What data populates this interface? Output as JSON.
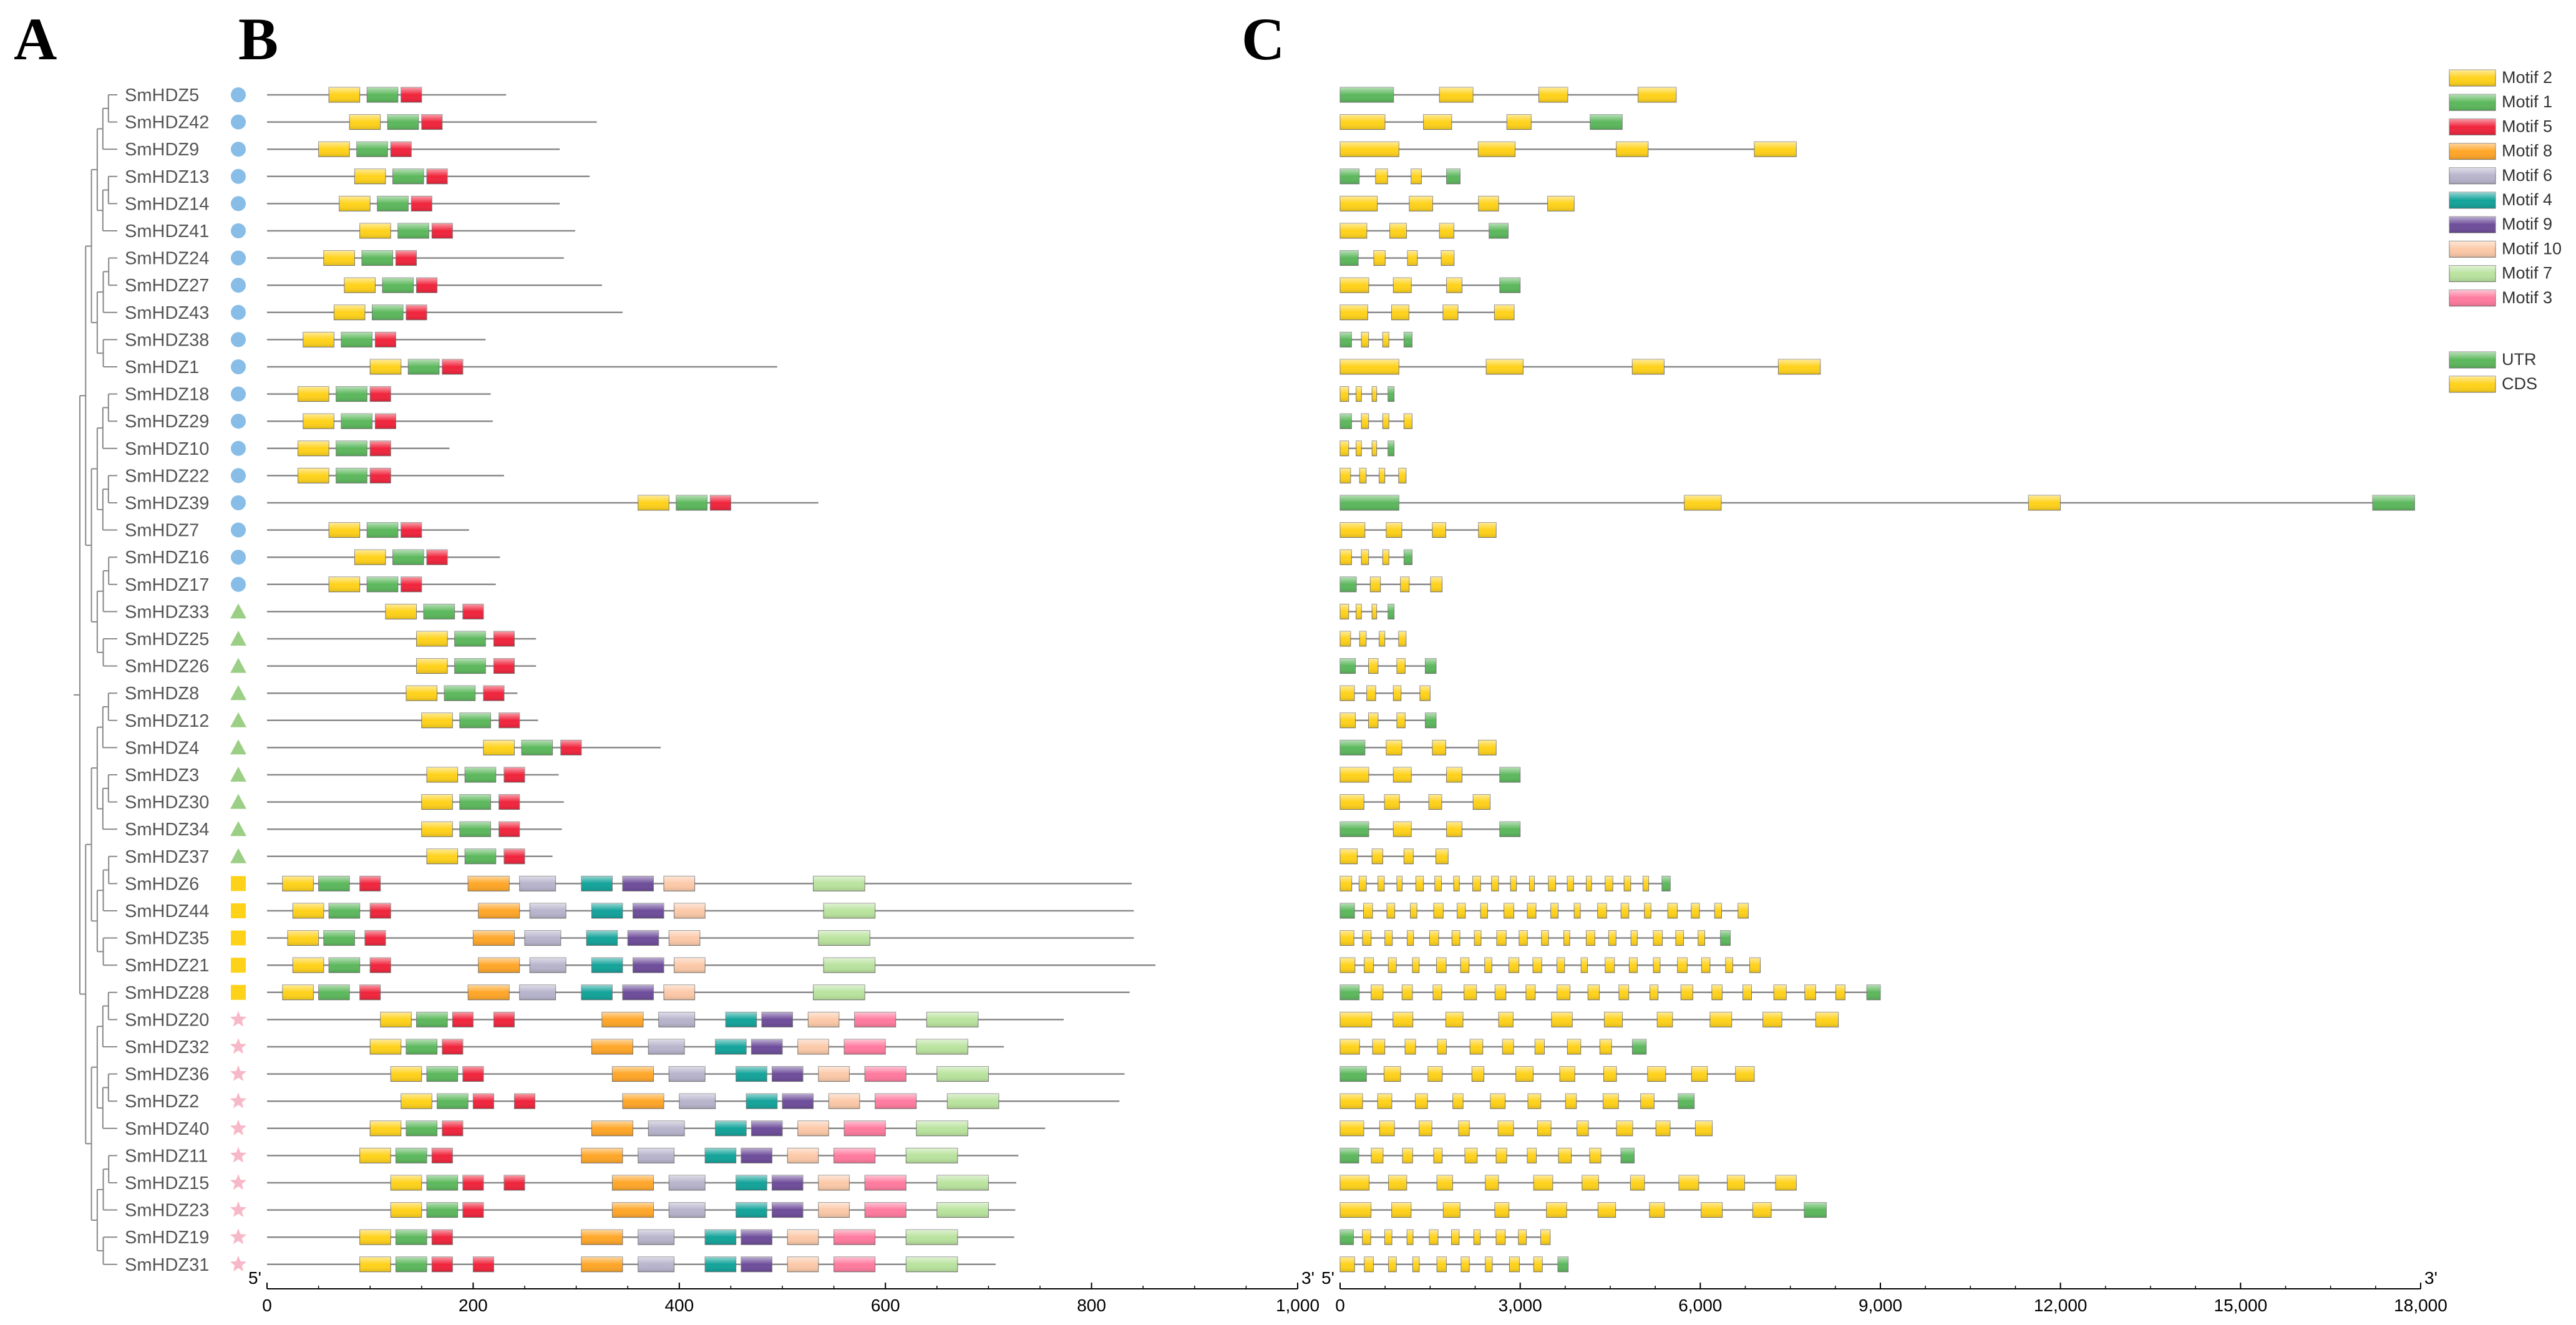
{
  "panels": {
    "a": "A",
    "b": "B",
    "c": "C"
  },
  "genes": [
    {
      "name": "SmHDZ5",
      "group": "I"
    },
    {
      "name": "SmHDZ42",
      "group": "I"
    },
    {
      "name": "SmHDZ9",
      "group": "I"
    },
    {
      "name": "SmHDZ13",
      "group": "I"
    },
    {
      "name": "SmHDZ14",
      "group": "I"
    },
    {
      "name": "SmHDZ41",
      "group": "I"
    },
    {
      "name": "SmHDZ24",
      "group": "I"
    },
    {
      "name": "SmHDZ27",
      "group": "I"
    },
    {
      "name": "SmHDZ43",
      "group": "I"
    },
    {
      "name": "SmHDZ38",
      "group": "I"
    },
    {
      "name": "SmHDZ1",
      "group": "I"
    },
    {
      "name": "SmHDZ18",
      "group": "I"
    },
    {
      "name": "SmHDZ29",
      "group": "I"
    },
    {
      "name": "SmHDZ10",
      "group": "I"
    },
    {
      "name": "SmHDZ22",
      "group": "I"
    },
    {
      "name": "SmHDZ39",
      "group": "I"
    },
    {
      "name": "SmHDZ7",
      "group": "I"
    },
    {
      "name": "SmHDZ16",
      "group": "I"
    },
    {
      "name": "SmHDZ17",
      "group": "I"
    },
    {
      "name": "SmHDZ33",
      "group": "II"
    },
    {
      "name": "SmHDZ25",
      "group": "II"
    },
    {
      "name": "SmHDZ26",
      "group": "II"
    },
    {
      "name": "SmHDZ8",
      "group": "II"
    },
    {
      "name": "SmHDZ12",
      "group": "II"
    },
    {
      "name": "SmHDZ4",
      "group": "II"
    },
    {
      "name": "SmHDZ3",
      "group": "II"
    },
    {
      "name": "SmHDZ30",
      "group": "II"
    },
    {
      "name": "SmHDZ34",
      "group": "II"
    },
    {
      "name": "SmHDZ37",
      "group": "II"
    },
    {
      "name": "SmHDZ6",
      "group": "III"
    },
    {
      "name": "SmHDZ44",
      "group": "III"
    },
    {
      "name": "SmHDZ35",
      "group": "III"
    },
    {
      "name": "SmHDZ21",
      "group": "III"
    },
    {
      "name": "SmHDZ28",
      "group": "III"
    },
    {
      "name": "SmHDZ20",
      "group": "IV"
    },
    {
      "name": "SmHDZ32",
      "group": "IV"
    },
    {
      "name": "SmHDZ36",
      "group": "IV"
    },
    {
      "name": "SmHDZ2",
      "group": "IV"
    },
    {
      "name": "SmHDZ40",
      "group": "IV"
    },
    {
      "name": "SmHDZ11",
      "group": "IV"
    },
    {
      "name": "SmHDZ15",
      "group": "IV"
    },
    {
      "name": "SmHDZ23",
      "group": "IV"
    },
    {
      "name": "SmHDZ19",
      "group": "IV"
    },
    {
      "name": "SmHDZ31",
      "group": "IV"
    }
  ],
  "groups": {
    "I": {
      "marker": "circle",
      "color": "#87bde6"
    },
    "II": {
      "marker": "triangle",
      "color": "#9ccf86"
    },
    "III": {
      "marker": "square",
      "color": "#ffd21a"
    },
    "IV": {
      "marker": "star",
      "color": "#f7b9c8"
    }
  },
  "motif_axis": {
    "ticks": [
      "0",
      "200",
      "400",
      "600",
      "800",
      "1,000"
    ],
    "tick_values": [
      0,
      200,
      400,
      600,
      800,
      1000
    ],
    "start_label": "5'",
    "end_label": "3'"
  },
  "gene_axis": {
    "ticks": [
      "0",
      "3,000",
      "6,000",
      "9,000",
      "12,000",
      "15,000",
      "18,000"
    ],
    "tick_values": [
      0,
      3000,
      6000,
      9000,
      12000,
      15000,
      18000
    ],
    "start_label": "5'",
    "end_label": "3'"
  },
  "motif_legend": [
    {
      "label": "Motif 2",
      "color": "#ffd21a"
    },
    {
      "label": "Motif 1",
      "color": "#5cb85c"
    },
    {
      "label": "Motif 5",
      "color": "#f0243c"
    },
    {
      "label": "Motif 8",
      "color": "#ffa628"
    },
    {
      "label": "Motif 6",
      "color": "#b7b4cc"
    },
    {
      "label": "Motif 4",
      "color": "#12a39a"
    },
    {
      "label": "Motif 9",
      "color": "#6d4c9a"
    },
    {
      "label": "Motif 10",
      "color": "#fcc9a8"
    },
    {
      "label": "Motif 7",
      "color": "#b9e39e"
    },
    {
      "label": "Motif 3",
      "color": "#ff7a9e"
    }
  ],
  "structure_legend": [
    {
      "label": "UTR",
      "color": "#5cb85c"
    },
    {
      "label": "CDS",
      "color": "#ffd21a"
    }
  ],
  "protein_lengths": [
    232,
    320,
    284,
    313,
    284,
    299,
    288,
    325,
    345,
    212,
    495,
    217,
    219,
    177,
    230,
    535,
    196,
    226,
    222,
    202,
    261,
    261,
    243,
    263,
    382,
    283,
    288,
    286,
    277,
    839,
    841,
    841,
    862,
    837,
    773,
    715,
    832,
    827,
    755,
    729,
    727,
    726,
    725,
    707
  ],
  "motif_sites": {
    "I_a": [
      [
        2,
        60,
        30
      ],
      [
        1,
        97,
        30
      ],
      [
        5,
        130,
        20
      ]
    ],
    "II_a": [
      [
        2,
        115,
        30
      ],
      [
        1,
        152,
        30
      ],
      [
        5,
        190,
        20
      ]
    ],
    "III": [
      [
        2,
        15,
        30
      ],
      [
        1,
        50,
        30
      ],
      [
        5,
        90,
        20
      ],
      [
        8,
        195,
        40
      ],
      [
        6,
        245,
        35
      ],
      [
        4,
        305,
        30
      ],
      [
        9,
        345,
        30
      ],
      [
        10,
        385,
        30
      ],
      [
        7,
        530,
        50
      ]
    ],
    "IV": [
      [
        2,
        110,
        30
      ],
      [
        1,
        145,
        30
      ],
      [
        5,
        180,
        20
      ],
      [
        5,
        220,
        20
      ],
      [
        8,
        325,
        40
      ],
      [
        6,
        380,
        35
      ],
      [
        4,
        445,
        30
      ],
      [
        9,
        480,
        30
      ],
      [
        10,
        525,
        30
      ],
      [
        3,
        570,
        40
      ],
      [
        7,
        640,
        50
      ]
    ]
  },
  "gene_lengths_kb": [
    5.6,
    4.7,
    7.6,
    2.0,
    3.9,
    2.8,
    1.9,
    3.0,
    2.9,
    1.2,
    8.0,
    0.9,
    1.2,
    0.9,
    1.1,
    17.9,
    2.6,
    1.2,
    1.7,
    0.9,
    1.1,
    1.6,
    1.5,
    1.6,
    2.6,
    3.0,
    2.5,
    3.0,
    1.8,
    5.5,
    6.8,
    6.5,
    7.0,
    9.0,
    8.3,
    5.1,
    6.9,
    5.9,
    6.2,
    4.9,
    7.6,
    8.1,
    3.5,
    3.8
  ]
}
